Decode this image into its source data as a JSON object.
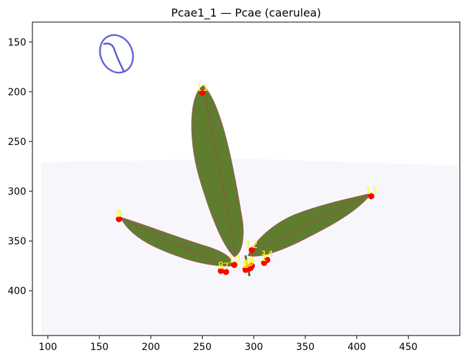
{
  "chart_data": {
    "type": "scatter",
    "title": "Pcae1_1 — Pcae (caerulea)",
    "xlabel": "",
    "ylabel": "",
    "xlim": [
      85,
      500
    ],
    "ylim": [
      445,
      130
    ],
    "y_inverted": true,
    "grid": false,
    "x_ticks": [
      100,
      150,
      200,
      250,
      300,
      350,
      400,
      450
    ],
    "y_ticks": [
      150,
      200,
      250,
      300,
      350,
      400
    ],
    "background": "leaf scan image",
    "marker_color": "#ff0000",
    "label_color": "#ffff00",
    "points": [
      {
        "label": "11",
        "x": 250,
        "y": 201
      },
      {
        "label": "13",
        "x": 414,
        "y": 305
      },
      {
        "label": "9",
        "x": 169,
        "y": 328
      },
      {
        "label": "12",
        "x": 298,
        "y": 359
      },
      {
        "label": "10",
        "x": 281,
        "y": 374
      },
      {
        "label": "14",
        "x": 313,
        "y": 369
      },
      {
        "label": "1",
        "x": 310,
        "y": 372
      },
      {
        "label": "4",
        "x": 298,
        "y": 375
      },
      {
        "label": "3",
        "x": 297,
        "y": 377
      },
      {
        "label": "5",
        "x": 295,
        "y": 378
      },
      {
        "label": "2",
        "x": 292,
        "y": 379
      },
      {
        "label": "6",
        "x": 292,
        "y": 378
      },
      {
        "label": "8",
        "x": 268,
        "y": 380
      },
      {
        "label": "7",
        "x": 273,
        "y": 381
      }
    ]
  }
}
